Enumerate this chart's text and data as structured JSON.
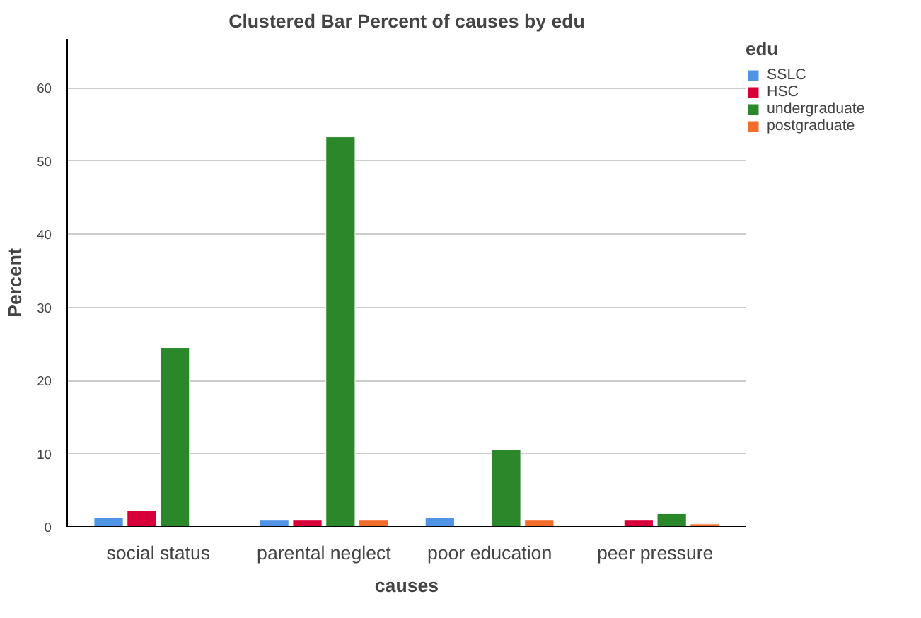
{
  "chart_data": {
    "type": "bar",
    "title": "Clustered Bar Percent of causes by edu",
    "xlabel": "causes",
    "ylabel": "Percent",
    "legend_title": "edu",
    "categories": [
      "social status",
      "parental neglect",
      "poor education",
      "peer pressure"
    ],
    "series": [
      {
        "name": "SSLC",
        "color": "#5094e6",
        "values": [
          1.3,
          0.9,
          1.3,
          null
        ]
      },
      {
        "name": "HSC",
        "color": "#d8003a",
        "values": [
          2.2,
          0.9,
          null,
          0.9
        ]
      },
      {
        "name": "undergraduate",
        "color": "#2a882a",
        "values": [
          24.5,
          53.3,
          10.5,
          1.8
        ]
      },
      {
        "name": "postgraduate",
        "color": "#f26c2c",
        "values": [
          null,
          0.9,
          0.9,
          0.4
        ]
      }
    ],
    "ylim": [
      0,
      66.7
    ],
    "yticks": [
      0,
      10,
      20,
      30,
      40,
      50,
      60
    ],
    "grid": "y",
    "legend": "top right"
  }
}
